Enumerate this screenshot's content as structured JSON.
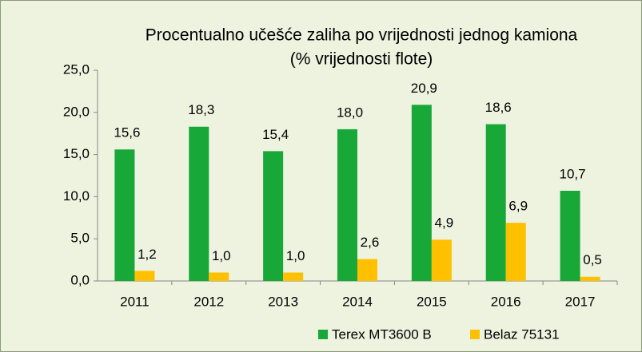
{
  "chart_data": {
    "type": "bar",
    "title": "Procentualno učešće zaliha po vrijednosti jednog kamiona",
    "subtitle": "(% vrijednosti flote)",
    "categories": [
      "2011",
      "2012",
      "2013",
      "2014",
      "2015",
      "2016",
      "2017"
    ],
    "series": [
      {
        "name": "Terex MT3600 B",
        "color": "#17a838",
        "values": [
          15.6,
          18.3,
          15.4,
          18.0,
          20.9,
          18.6,
          10.7
        ],
        "value_labels": [
          "15,6",
          "18,3",
          "15,4",
          "18,0",
          "20,9",
          "18,6",
          "10,7"
        ]
      },
      {
        "name": "Belaz 75131",
        "color": "#ffc000",
        "values": [
          1.2,
          1.0,
          1.0,
          2.6,
          4.9,
          6.9,
          0.5
        ],
        "value_labels": [
          "1,2",
          "1,0",
          "1,0",
          "2,6",
          "4,9",
          "6,9",
          "0,5"
        ]
      }
    ],
    "ylim": [
      0,
      25
    ],
    "yticks": [
      {
        "value": 0,
        "label": "0,0"
      },
      {
        "value": 5,
        "label": "5,0"
      },
      {
        "value": 10,
        "label": "10,0"
      },
      {
        "value": 15,
        "label": "15,0"
      },
      {
        "value": 20,
        "label": "20,0"
      },
      {
        "value": 25,
        "label": "25,0"
      }
    ],
    "grid": false,
    "legend": "bottom"
  }
}
